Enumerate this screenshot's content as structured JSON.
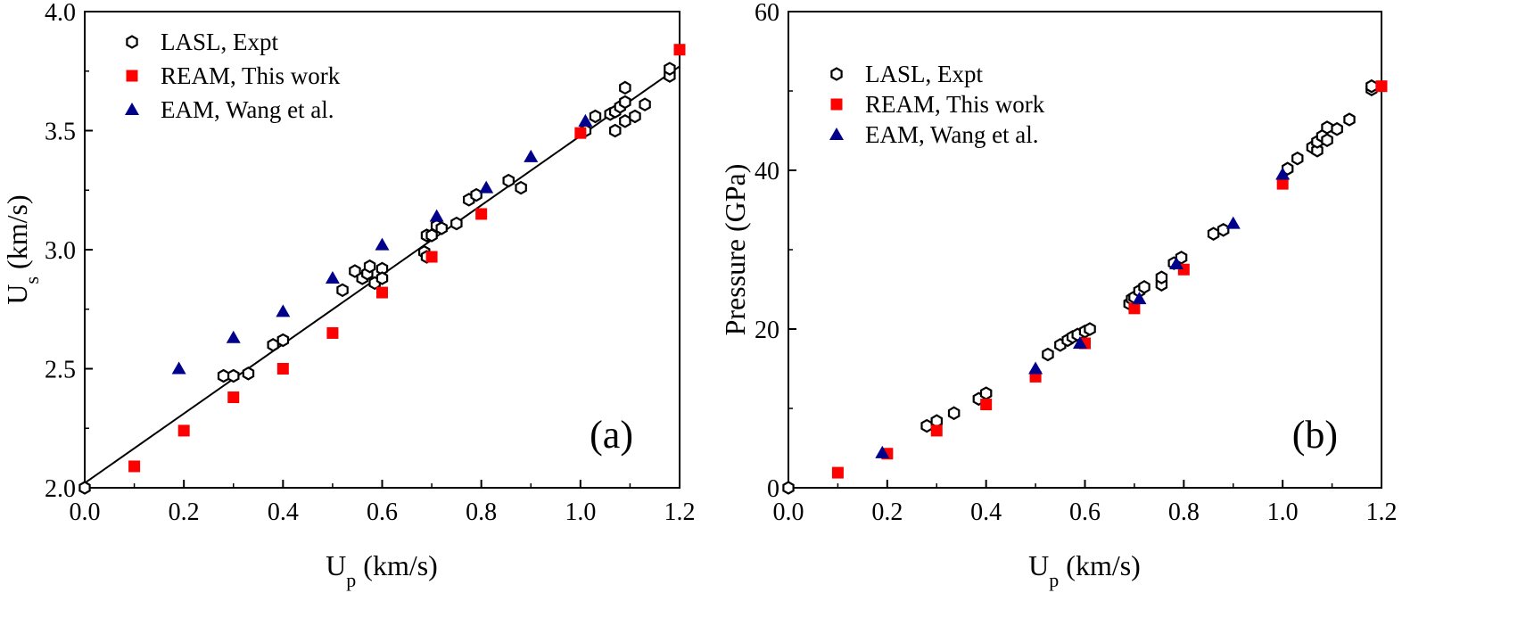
{
  "chart_data": [
    {
      "type": "scatter",
      "panel_label": "(a)",
      "xlabel": "U",
      "xlabel_sub": "p",
      "xlabel_unit": " (km/s)",
      "ylabel": "U",
      "ylabel_sub": "s",
      "ylabel_unit": " (km/s)",
      "xlim": [
        0,
        1.2
      ],
      "ylim": [
        2.0,
        4.0
      ],
      "x_ticks": [
        "0.0",
        "0.2",
        "0.4",
        "0.6",
        "0.8",
        "1.0",
        "1.2"
      ],
      "y_ticks": [
        "2.0",
        "2.5",
        "3.0",
        "3.5",
        "4.0"
      ],
      "legend_position": "top-left",
      "fit_line": [
        [
          0.0,
          2.02
        ],
        [
          1.2,
          3.77
        ]
      ],
      "series": [
        {
          "name": "LASL, Expt",
          "marker": "hexagon",
          "color": "#000000",
          "points": [
            [
              0.0,
              2.0
            ],
            [
              0.28,
              2.47
            ],
            [
              0.3,
              2.47
            ],
            [
              0.33,
              2.48
            ],
            [
              0.38,
              2.6
            ],
            [
              0.4,
              2.62
            ],
            [
              0.52,
              2.83
            ],
            [
              0.545,
              2.91
            ],
            [
              0.56,
              2.88
            ],
            [
              0.57,
              2.9
            ],
            [
              0.575,
              2.93
            ],
            [
              0.585,
              2.86
            ],
            [
              0.6,
              2.92
            ],
            [
              0.6,
              2.88
            ],
            [
              0.685,
              2.99
            ],
            [
              0.69,
              2.97
            ],
            [
              0.69,
              3.06
            ],
            [
              0.7,
              3.06
            ],
            [
              0.71,
              3.1
            ],
            [
              0.72,
              3.09
            ],
            [
              0.75,
              3.11
            ],
            [
              0.775,
              3.21
            ],
            [
              0.79,
              3.23
            ],
            [
              0.855,
              3.29
            ],
            [
              0.88,
              3.26
            ],
            [
              1.01,
              3.5
            ],
            [
              1.03,
              3.56
            ],
            [
              1.06,
              3.57
            ],
            [
              1.07,
              3.5
            ],
            [
              1.07,
              3.58
            ],
            [
              1.08,
              3.6
            ],
            [
              1.09,
              3.68
            ],
            [
              1.09,
              3.62
            ],
            [
              1.09,
              3.54
            ],
            [
              1.11,
              3.56
            ],
            [
              1.13,
              3.61
            ],
            [
              1.18,
              3.73
            ],
            [
              1.18,
              3.76
            ]
          ]
        },
        {
          "name": "REAM, This work",
          "marker": "square",
          "color": "#ff0000",
          "points": [
            [
              0.1,
              2.09
            ],
            [
              0.2,
              2.24
            ],
            [
              0.3,
              2.38
            ],
            [
              0.4,
              2.5
            ],
            [
              0.5,
              2.65
            ],
            [
              0.6,
              2.82
            ],
            [
              0.7,
              2.97
            ],
            [
              0.8,
              3.15
            ],
            [
              1.0,
              3.49
            ],
            [
              1.2,
              3.84
            ]
          ]
        },
        {
          "name": "EAM, Wang et al.",
          "marker": "triangle",
          "color": "#00008b",
          "points": [
            [
              0.19,
              2.5
            ],
            [
              0.3,
              2.63
            ],
            [
              0.4,
              2.74
            ],
            [
              0.5,
              2.88
            ],
            [
              0.6,
              3.02
            ],
            [
              0.71,
              3.14
            ],
            [
              0.81,
              3.26
            ],
            [
              0.9,
              3.39
            ],
            [
              1.01,
              3.54
            ]
          ]
        }
      ]
    },
    {
      "type": "scatter",
      "panel_label": "(b)",
      "xlabel": "U",
      "xlabel_sub": "p",
      "xlabel_unit": " (km/s)",
      "ylabel": "Pressure (GPa)",
      "xlim": [
        0,
        1.2
      ],
      "ylim": [
        0,
        60
      ],
      "x_ticks": [
        "0.0",
        "0.2",
        "0.4",
        "0.6",
        "0.8",
        "1.0",
        "1.2"
      ],
      "y_ticks": [
        "0",
        "20",
        "40",
        "60"
      ],
      "legend_position": "top-left",
      "series": [
        {
          "name": "LASL, Expt",
          "marker": "hexagon",
          "color": "#000000",
          "points": [
            [
              0.0,
              0.0
            ],
            [
              0.28,
              7.8
            ],
            [
              0.3,
              8.4
            ],
            [
              0.335,
              9.4
            ],
            [
              0.385,
              11.2
            ],
            [
              0.4,
              11.9
            ],
            [
              0.525,
              16.8
            ],
            [
              0.55,
              18.0
            ],
            [
              0.565,
              18.6
            ],
            [
              0.575,
              19.0
            ],
            [
              0.585,
              19.3
            ],
            [
              0.6,
              19.7
            ],
            [
              0.61,
              20.0
            ],
            [
              0.69,
              23.2
            ],
            [
              0.695,
              23.8
            ],
            [
              0.7,
              24.0
            ],
            [
              0.71,
              24.8
            ],
            [
              0.72,
              25.3
            ],
            [
              0.755,
              25.6
            ],
            [
              0.755,
              26.5
            ],
            [
              0.78,
              28.3
            ],
            [
              0.795,
              29.0
            ],
            [
              0.86,
              32.0
            ],
            [
              0.88,
              32.5
            ],
            [
              1.01,
              40.2
            ],
            [
              1.03,
              41.5
            ],
            [
              1.06,
              42.9
            ],
            [
              1.07,
              42.5
            ],
            [
              1.07,
              43.6
            ],
            [
              1.08,
              44.3
            ],
            [
              1.09,
              43.8
            ],
            [
              1.09,
              45.4
            ],
            [
              1.11,
              45.2
            ],
            [
              1.135,
              46.4
            ],
            [
              1.18,
              50.2
            ],
            [
              1.18,
              50.6
            ]
          ]
        },
        {
          "name": "REAM, This work",
          "marker": "square",
          "color": "#ff0000",
          "points": [
            [
              0.1,
              1.9
            ],
            [
              0.2,
              4.3
            ],
            [
              0.3,
              7.2
            ],
            [
              0.4,
              10.5
            ],
            [
              0.5,
              14.0
            ],
            [
              0.6,
              18.2
            ],
            [
              0.7,
              22.6
            ],
            [
              0.8,
              27.5
            ],
            [
              1.0,
              38.3
            ],
            [
              1.2,
              50.6
            ]
          ]
        },
        {
          "name": "EAM, Wang et al.",
          "marker": "triangle",
          "color": "#00008b",
          "points": [
            [
              0.19,
              4.4
            ],
            [
              0.5,
              15.0
            ],
            [
              0.59,
              18.2
            ],
            [
              0.71,
              23.8
            ],
            [
              0.785,
              28.2
            ],
            [
              0.9,
              33.3
            ],
            [
              1.0,
              39.5
            ]
          ]
        }
      ]
    }
  ]
}
